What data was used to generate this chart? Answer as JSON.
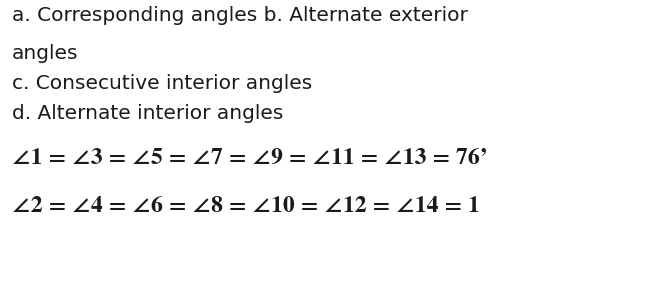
{
  "background_color": "#ffffff",
  "text_color": "#1a1a1a",
  "line1": "a. Corresponding angles b. Alternate exterior",
  "line2": "angles",
  "line3": "c. Consecutive interior angles",
  "line4": "d. Alternate interior angles",
  "eq1_text": "∠1 = ∠3 = ∠5 = ∠7 = ∠9 = ∠11 = ∠13 = 76’",
  "eq2_text": "∠2 = ∠4 = ∠6 = ∠8 = ∠10 = ∠12 = ∠14 = 1",
  "font_size_text": 14.5,
  "font_size_eq": 17,
  "font_weight_text": "normal",
  "font_weight_eq": "bold",
  "text_color_eq": "#1a1a1a"
}
